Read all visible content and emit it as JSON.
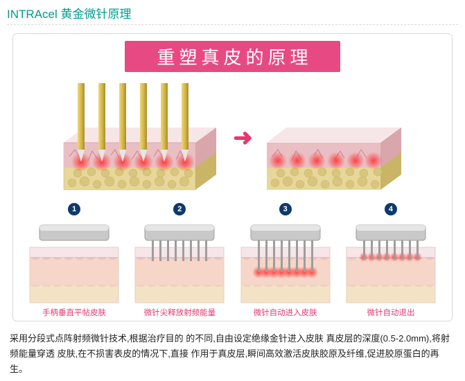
{
  "title": "INTRAcel 黄金微针原理",
  "banner": "重塑真皮的原理",
  "arrow_glyph": "➜",
  "colors": {
    "title": "#009a8e",
    "banner_bg": "#e74a83",
    "banner_text": "#ffffff",
    "accent": "#e6396f",
    "badge_bg": "#0e3a6b",
    "epidermis_top": "#f6e6e8",
    "epidermis_mid": "#e9bfc4",
    "dermis": "#f6d6c8",
    "hypodermis": "#e7d79a",
    "hypodermis_dark": "#c9b565",
    "needle_gold": "#d6b84a",
    "needle_gold_dark": "#a98e2b",
    "applicator": "#c9c9c9",
    "applicator_edge": "#9d9d9d",
    "vein": "#c6727d",
    "glow": "#ff2d2d"
  },
  "steps": [
    {
      "n": "1",
      "caption": "手柄垂直平帖皮肤",
      "needles": false,
      "depth": 0,
      "glow": false
    },
    {
      "n": "2",
      "caption": "微针尖释放射频能量",
      "needles": true,
      "depth": 14,
      "glow": false
    },
    {
      "n": "3",
      "caption": "微针自动进入皮肤",
      "needles": true,
      "depth": 30,
      "glow": true
    },
    {
      "n": "4",
      "caption": "微针自动退出",
      "needles": true,
      "depth": 12,
      "glow": true,
      "glow_tight": true
    }
  ],
  "body_text": "采用分段式点阵射频微针技术,根据治疗目的 的不同,自由设定绝缘金针进入皮肤 真皮层的深度(0.5-2.0mm),将射频能量穿透 皮肤,在不损害表皮的情况下,直接 作用于真皮层,瞬间高效激活皮肤胶原及纤维,促进胶原蛋白的再生。"
}
